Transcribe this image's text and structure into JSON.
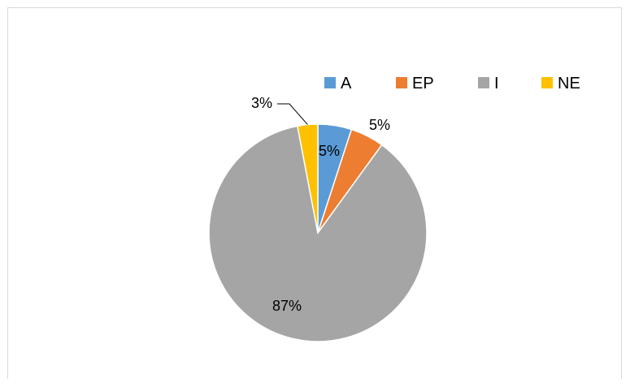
{
  "chart_data": {
    "type": "pie",
    "title": "",
    "legend_position": "top",
    "slices": [
      {
        "label": "A",
        "value": 5,
        "display": "5%",
        "color": "#5b9bd5"
      },
      {
        "label": "EP",
        "value": 5,
        "display": "5%",
        "color": "#ed7d31"
      },
      {
        "label": "I",
        "value": 87,
        "display": "87%",
        "color": "#a5a5a5"
      },
      {
        "label": "NE",
        "value": 3,
        "display": "3%",
        "color": "#ffc000"
      }
    ]
  }
}
